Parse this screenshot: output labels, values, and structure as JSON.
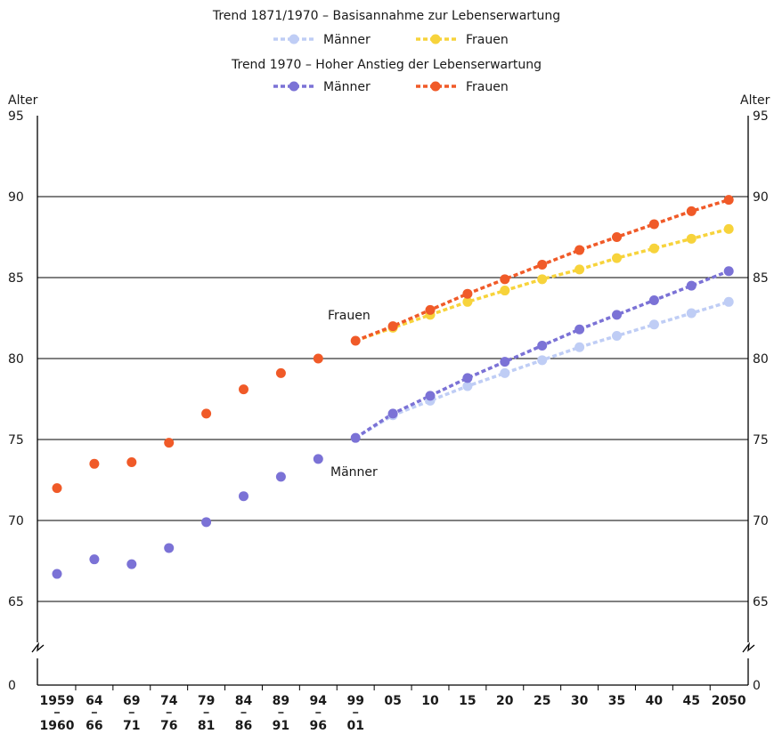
{
  "chart_data": {
    "type": "line",
    "legend": {
      "group1_title": "Trend 1871/1970 – Basisannahme zur Lebenserwartung",
      "group2_title": "Trend 1970 – Hoher Anstieg der Lebenserwartung"
    },
    "y_axis_label_left": "Alter",
    "y_axis_label_right": "Alter",
    "y_ticks": [
      0,
      65,
      70,
      75,
      80,
      85,
      90,
      95
    ],
    "ylim": [
      65,
      95
    ],
    "y_axis_break": true,
    "x_tick_labels": [
      {
        "top": "1959",
        "bottom": "1960"
      },
      {
        "top": "64",
        "bottom": "66"
      },
      {
        "top": "69",
        "bottom": "71"
      },
      {
        "top": "74",
        "bottom": "76"
      },
      {
        "top": "79",
        "bottom": "81"
      },
      {
        "top": "84",
        "bottom": "86"
      },
      {
        "top": "89",
        "bottom": "91"
      },
      {
        "top": "94",
        "bottom": "96"
      },
      {
        "top": "99",
        "bottom": "01"
      },
      {
        "top": "05",
        "bottom": ""
      },
      {
        "top": "10",
        "bottom": ""
      },
      {
        "top": "15",
        "bottom": ""
      },
      {
        "top": "20",
        "bottom": ""
      },
      {
        "top": "25",
        "bottom": ""
      },
      {
        "top": "30",
        "bottom": ""
      },
      {
        "top": "35",
        "bottom": ""
      },
      {
        "top": "40",
        "bottom": ""
      },
      {
        "top": "45",
        "bottom": ""
      },
      {
        "top": "2050",
        "bottom": ""
      }
    ],
    "annotations": [
      {
        "text": "Frauen",
        "series": "historical_women"
      },
      {
        "text": "Männer",
        "series": "historical_men"
      }
    ],
    "series": [
      {
        "key": "historical_women",
        "style": "points",
        "color": "#f05a28",
        "values": [
          72.0,
          73.5,
          73.6,
          74.8,
          76.6,
          78.1,
          79.1,
          80.0,
          81.1
        ]
      },
      {
        "key": "historical_men",
        "style": "points",
        "color": "#7b72d6",
        "values": [
          66.7,
          67.6,
          67.3,
          68.3,
          69.9,
          71.5,
          72.7,
          73.8,
          75.1
        ]
      },
      {
        "key": "basis_men",
        "name": "Männer",
        "style": "dashed",
        "color": "#bfcdf5",
        "start_index": 8,
        "values": [
          75.1,
          76.5,
          77.4,
          78.3,
          79.1,
          79.9,
          80.7,
          81.4,
          82.1,
          82.8,
          83.5
        ]
      },
      {
        "key": "basis_women",
        "name": "Frauen",
        "style": "dashed",
        "color": "#f7d33b",
        "start_index": 8,
        "values": [
          81.1,
          81.9,
          82.7,
          83.5,
          84.2,
          84.9,
          85.5,
          86.2,
          86.8,
          87.4,
          88.0
        ]
      },
      {
        "key": "high_men",
        "name": "Männer",
        "style": "dashed",
        "color": "#7b72d6",
        "start_index": 8,
        "values": [
          75.1,
          76.6,
          77.7,
          78.8,
          79.8,
          80.8,
          81.8,
          82.7,
          83.6,
          84.5,
          85.4
        ]
      },
      {
        "key": "high_women",
        "name": "Frauen",
        "style": "dashed",
        "color": "#f05a28",
        "start_index": 8,
        "values": [
          81.1,
          82.0,
          83.0,
          84.0,
          84.9,
          85.8,
          86.7,
          87.5,
          88.3,
          89.1,
          89.8
        ]
      }
    ]
  }
}
